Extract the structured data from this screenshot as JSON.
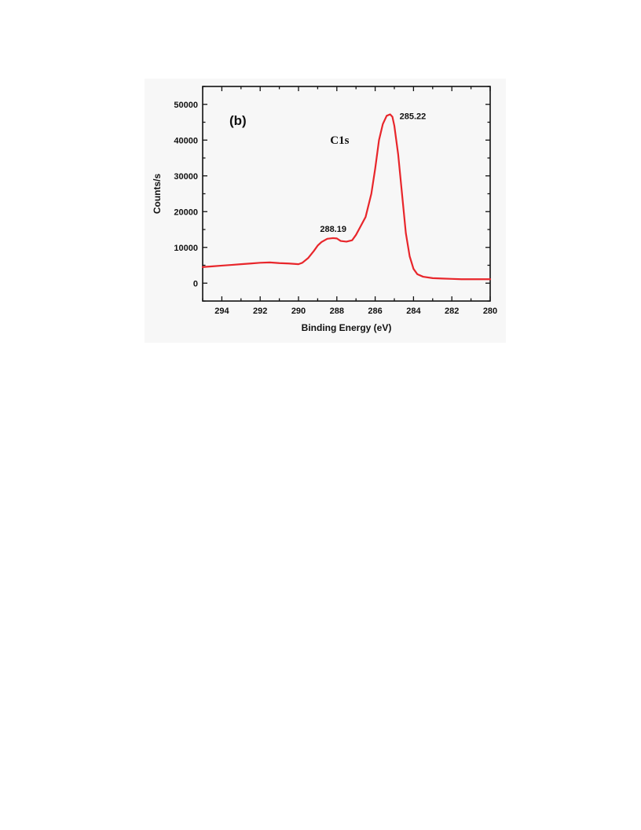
{
  "chart_data": {
    "type": "line",
    "panel_label": "(b)",
    "annotation_main": "C1s",
    "xlabel": "Binding Energy (eV)",
    "ylabel": "Counts/s",
    "xlim": [
      295,
      280
    ],
    "ylim": [
      -5000,
      55000
    ],
    "x_reversed": true,
    "x_ticks": [
      294,
      292,
      290,
      288,
      286,
      284,
      282,
      280
    ],
    "y_ticks": [
      0,
      10000,
      20000,
      30000,
      40000,
      50000
    ],
    "grid": false,
    "line_color": "#e8262b",
    "series": [
      {
        "x": [
          295,
          294.5,
          294,
          293.5,
          293,
          292.5,
          292,
          291.5,
          291,
          290.5,
          290,
          289.8,
          289.5,
          289.2,
          289,
          288.8,
          288.5,
          288.2,
          288,
          287.8,
          287.5,
          287.2,
          287,
          286.8,
          286.5,
          286.2,
          286,
          285.8,
          285.6,
          285.4,
          285.22,
          285.1,
          285,
          284.8,
          284.6,
          284.4,
          284.2,
          284,
          283.8,
          283.5,
          283,
          282.5,
          282,
          281.5,
          281,
          280.5,
          280
        ],
        "y": [
          4500,
          4700,
          4900,
          5100,
          5300,
          5500,
          5700,
          5800,
          5600,
          5500,
          5300,
          5700,
          7000,
          9000,
          10500,
          11500,
          12400,
          12600,
          12500,
          11800,
          11600,
          12000,
          13500,
          15500,
          18500,
          25000,
          32000,
          40000,
          44500,
          46800,
          47200,
          46500,
          44000,
          36000,
          25000,
          14000,
          7500,
          4000,
          2500,
          1800,
          1400,
          1300,
          1200,
          1100,
          1100,
          1100,
          1100
        ]
      }
    ],
    "annotations": [
      {
        "text": "285.22",
        "x": 285.22,
        "y": 47200
      },
      {
        "text": "288.19",
        "x": 288.19,
        "y": 12600
      }
    ]
  }
}
